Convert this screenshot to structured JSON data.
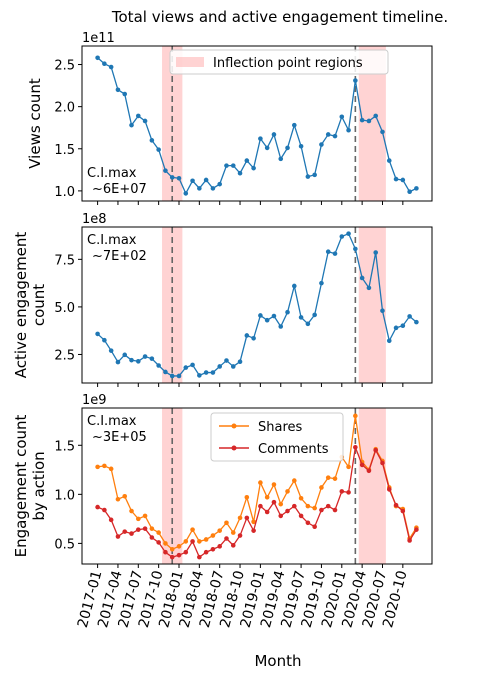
{
  "figure": {
    "title": "Total views and active engagement timeline.",
    "xlabel": "Month"
  },
  "chart_data": [
    {
      "type": "line",
      "id": "views",
      "ylabel": "Views count",
      "scale_label": "1e11",
      "ci_label": "C.I.max",
      "ci_value": "~6E+07",
      "ylim": [
        0.88,
        2.72
      ],
      "yticks": [
        1.0,
        1.5,
        2.0,
        2.5
      ],
      "ytick_labels": [
        "1.0",
        "1.5",
        "2.0",
        "2.5"
      ],
      "legend": {
        "label": "Inflection point regions",
        "placement": "top-center"
      },
      "series": [
        {
          "color": "#1f77b4",
          "values": [
            2.58,
            2.51,
            2.47,
            2.2,
            2.15,
            1.78,
            1.89,
            1.83,
            1.6,
            1.49,
            1.24,
            1.16,
            1.15,
            0.97,
            1.12,
            1.03,
            1.13,
            1.03,
            1.08,
            1.3,
            1.3,
            1.21,
            1.36,
            1.27,
            1.62,
            1.51,
            1.67,
            1.38,
            1.51,
            1.78,
            1.53,
            1.17,
            1.19,
            1.55,
            1.67,
            1.65,
            1.88,
            1.72,
            2.31,
            1.84,
            1.83,
            1.89,
            1.7,
            1.36,
            1.14,
            1.13,
            0.99,
            1.03
          ]
        }
      ]
    },
    {
      "type": "line",
      "id": "active",
      "ylabel": "Active engagement count",
      "scale_label": "1e8",
      "ci_label": "C.I.max",
      "ci_value": "~7E+02",
      "ylim": [
        1.0,
        9.2
      ],
      "yticks": [
        2.5,
        5.0,
        7.5
      ],
      "ytick_labels": [
        "2.5",
        "5.0",
        "7.5"
      ],
      "series": [
        {
          "color": "#1f77b4",
          "values": [
            3.58,
            3.25,
            2.7,
            2.1,
            2.48,
            2.2,
            2.14,
            2.39,
            2.28,
            1.92,
            1.58,
            1.37,
            1.37,
            1.81,
            1.95,
            1.4,
            1.55,
            1.55,
            1.87,
            2.18,
            1.87,
            2.12,
            3.5,
            3.35,
            4.55,
            4.3,
            4.52,
            3.97,
            4.72,
            6.1,
            4.45,
            4.11,
            4.58,
            6.25,
            7.9,
            7.8,
            8.7,
            8.85,
            8.05,
            6.52,
            6.0,
            7.86,
            4.8,
            3.22,
            3.9,
            4.01,
            4.5,
            4.2
          ]
        }
      ]
    },
    {
      "type": "line",
      "id": "byaction",
      "ylabel": "Engagement count by action",
      "scale_label": "1e9",
      "ci_label": "C.I.max",
      "ci_value": "~3E+05",
      "ylim": [
        0.29,
        1.88
      ],
      "yticks": [
        0.5,
        1.0,
        1.5
      ],
      "ytick_labels": [
        "0.5",
        "1.0",
        "1.5"
      ],
      "legend": {
        "placement": "top-center"
      },
      "series": [
        {
          "name": "Shares",
          "color": "#ff7f0e",
          "values": [
            1.28,
            1.29,
            1.26,
            0.95,
            0.98,
            0.83,
            0.75,
            0.78,
            0.65,
            0.61,
            0.5,
            0.44,
            0.47,
            0.52,
            0.64,
            0.52,
            0.54,
            0.58,
            0.63,
            0.71,
            0.61,
            0.76,
            0.97,
            0.72,
            1.12,
            0.97,
            1.1,
            0.9,
            1.03,
            1.14,
            0.96,
            0.88,
            0.86,
            1.07,
            1.17,
            1.16,
            1.38,
            1.28,
            1.8,
            1.33,
            1.25,
            1.46,
            1.34,
            1.07,
            0.88,
            0.85,
            0.55,
            0.66
          ]
        },
        {
          "name": "Comments",
          "color": "#d62728",
          "values": [
            0.87,
            0.84,
            0.74,
            0.57,
            0.62,
            0.6,
            0.64,
            0.65,
            0.56,
            0.51,
            0.41,
            0.36,
            0.38,
            0.41,
            0.52,
            0.36,
            0.41,
            0.44,
            0.47,
            0.55,
            0.48,
            0.58,
            0.76,
            0.63,
            0.88,
            0.82,
            0.92,
            0.78,
            0.83,
            0.88,
            0.78,
            0.71,
            0.67,
            0.84,
            0.88,
            0.84,
            1.03,
            1.02,
            1.48,
            1.3,
            1.24,
            1.45,
            1.32,
            1.05,
            0.89,
            0.83,
            0.53,
            0.64
          ]
        }
      ]
    }
  ],
  "shared_x": {
    "month_count": 48,
    "tick_labels": [
      "2017-01",
      "2017-04",
      "2017-07",
      "2017-10",
      "2018-01",
      "2018-04",
      "2018-07",
      "2018-10",
      "2019-01",
      "2019-04",
      "2019-07",
      "2019-10",
      "2020-01",
      "2020-04",
      "2020-07",
      "2020-10"
    ],
    "tick_months": [
      0,
      3,
      6,
      9,
      12,
      15,
      18,
      21,
      24,
      27,
      30,
      33,
      36,
      39,
      42,
      45
    ],
    "inflection_regions": [
      [
        9.5,
        12.5
      ],
      [
        38.5,
        42.5
      ]
    ],
    "inflection_lines": [
      11,
      38
    ],
    "region_color": "#ff9e9e",
    "line_color": "#666666"
  }
}
